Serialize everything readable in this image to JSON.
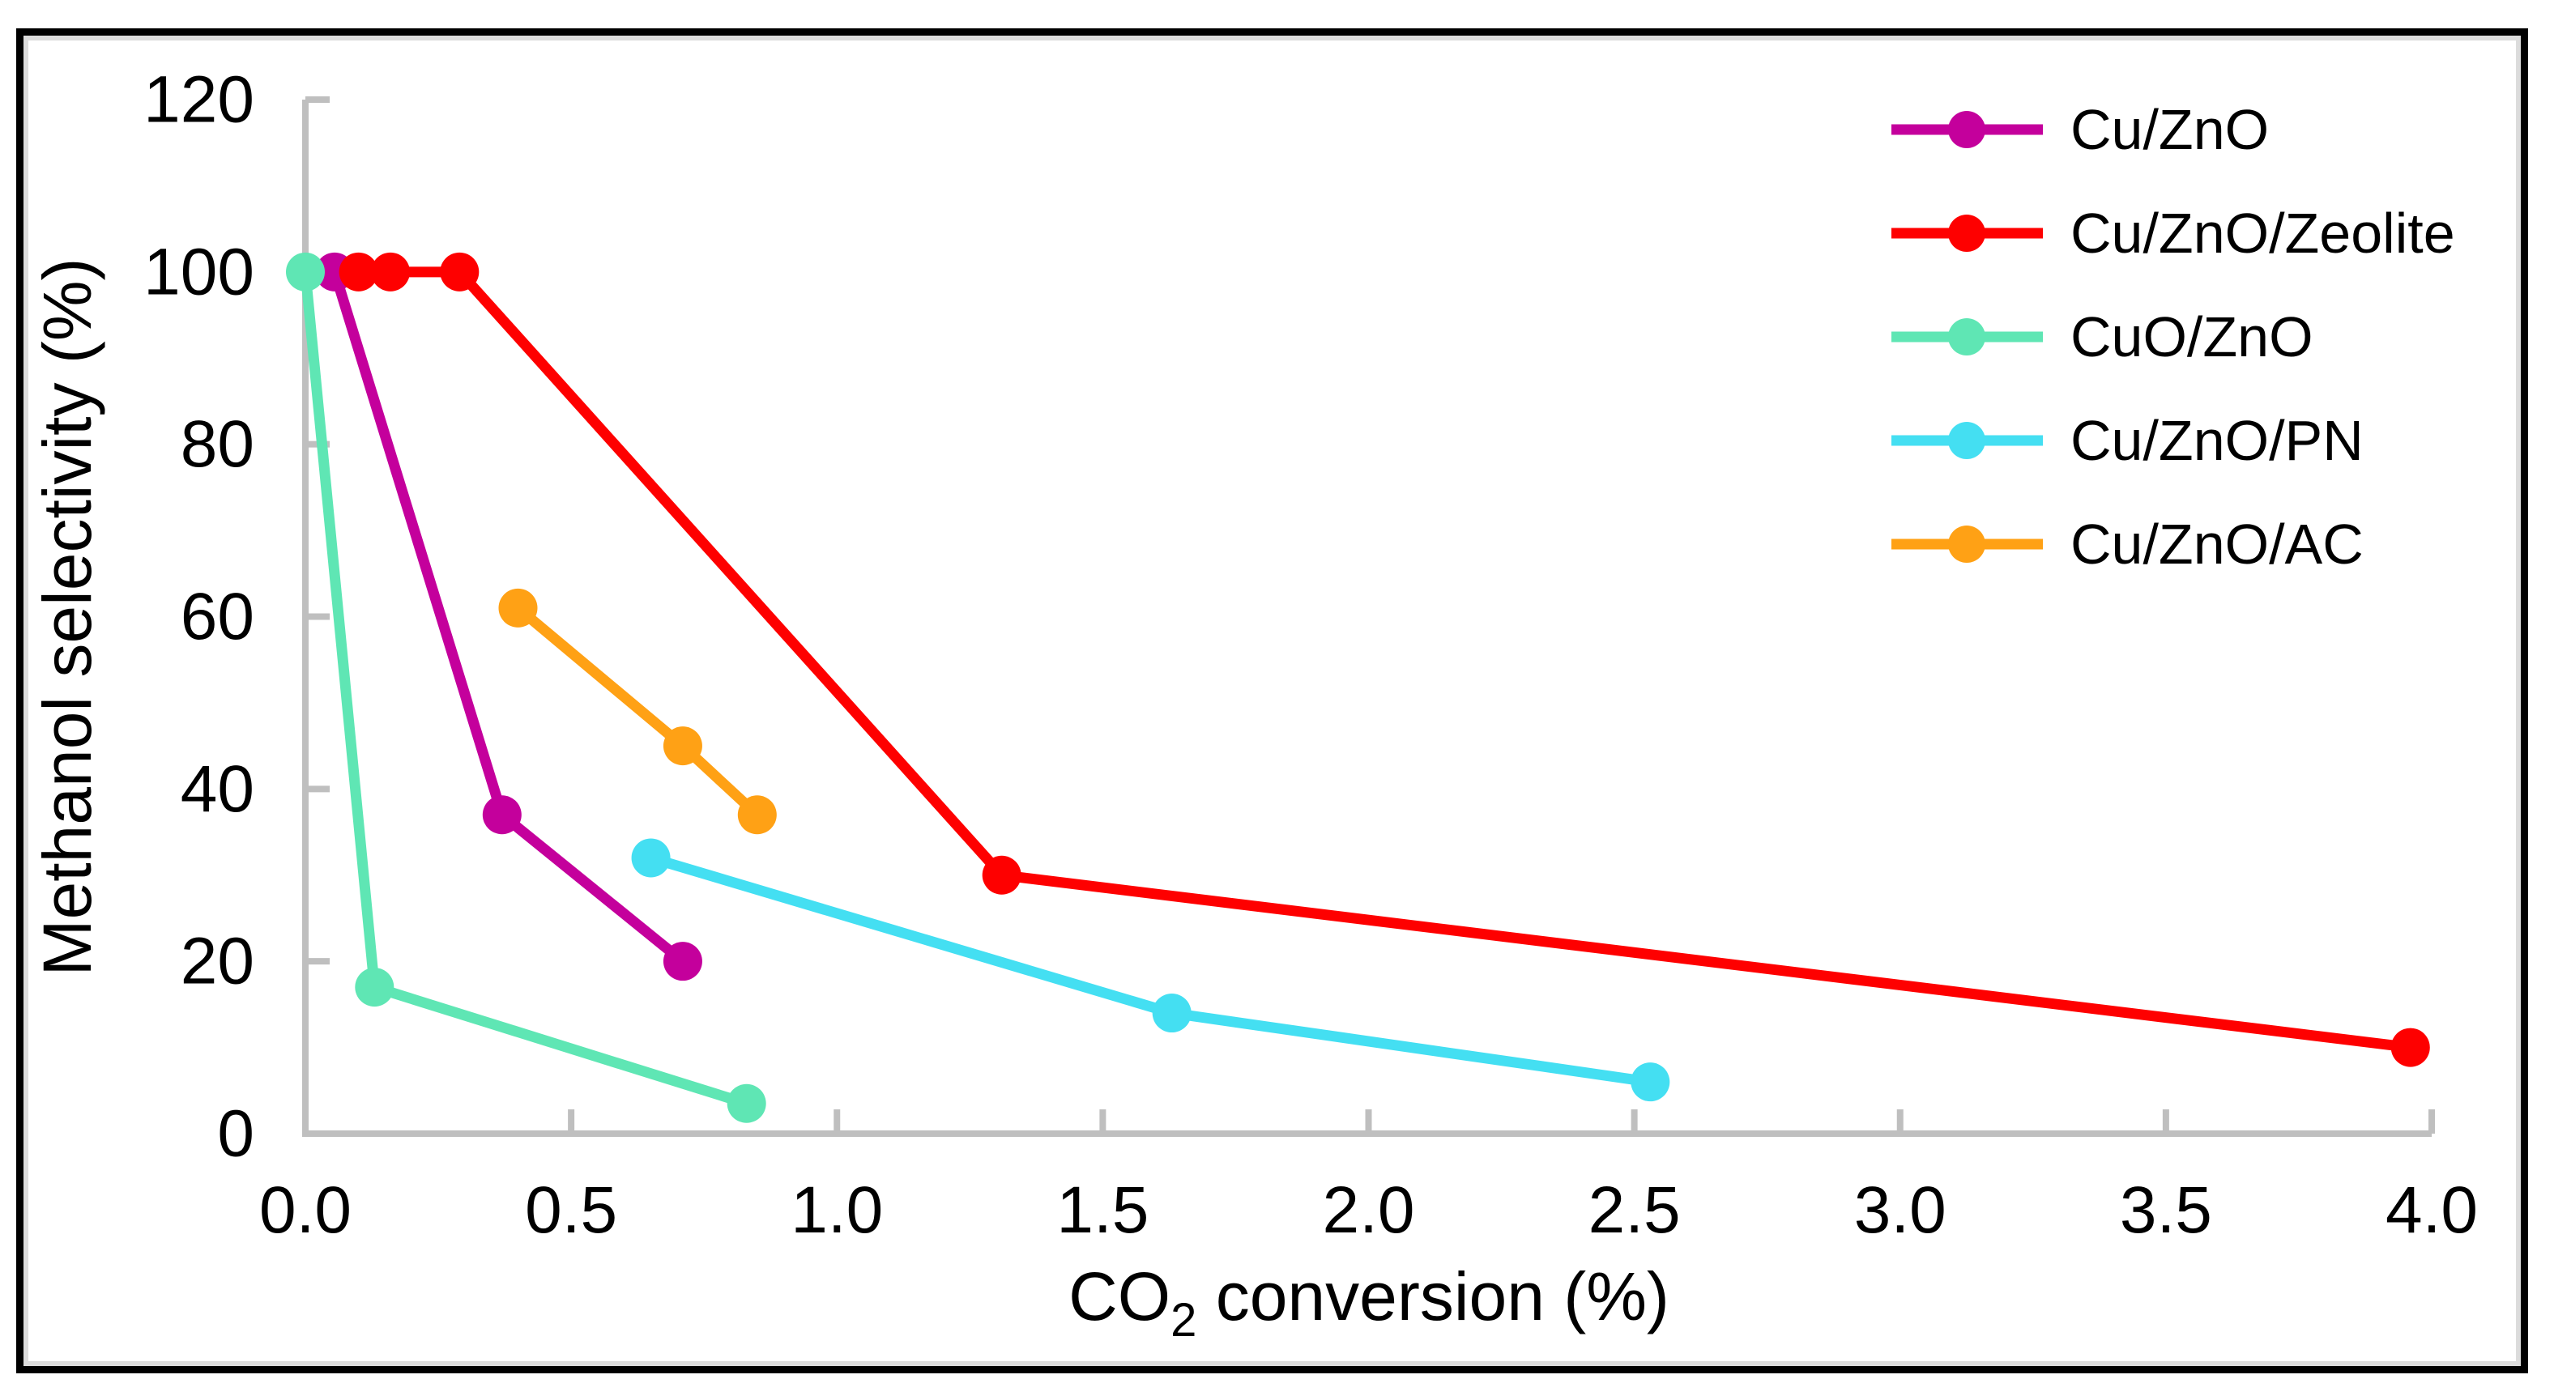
{
  "chart_data": {
    "type": "line",
    "title": "",
    "xlabel": "CO2 conversion (%)",
    "xlabel_parts": {
      "prefix": "CO",
      "sub": "2",
      "suffix": " conversion (%)"
    },
    "ylabel": "Methanol selectivity (%)",
    "xlim": [
      0,
      4
    ],
    "ylim": [
      0,
      120
    ],
    "x_tick_values": [
      0,
      0.5,
      1.0,
      1.5,
      2.0,
      2.5,
      3.0,
      3.5,
      4.0
    ],
    "x_tick_labels": [
      "0.0",
      "0.5",
      "1.0",
      "1.5",
      "2.0",
      "2.5",
      "3.0",
      "3.5",
      "4.0"
    ],
    "y_tick_values": [
      0,
      20,
      40,
      60,
      80,
      100,
      120
    ],
    "y_tick_labels": [
      "0",
      "20",
      "40",
      "60",
      "80",
      "100",
      "120"
    ],
    "grid": false,
    "legend_position": "top-right",
    "axis_color": "#BFBFBF",
    "text_color": "#000000",
    "series": [
      {
        "name": "Cu/ZnO",
        "color": "#C4009C",
        "points": [
          [
            0.055,
            100
          ],
          [
            0.37,
            37
          ],
          [
            0.71,
            20
          ]
        ]
      },
      {
        "name": "Cu/ZnO/Zeolite",
        "color": "#FE0000",
        "points": [
          [
            0.1,
            100
          ],
          [
            0.16,
            100
          ],
          [
            0.29,
            100
          ],
          [
            1.31,
            30
          ],
          [
            3.96,
            10
          ]
        ]
      },
      {
        "name": "CuO/ZnO",
        "color": "#5FE6B4",
        "points": [
          [
            0.0,
            100
          ],
          [
            0.13,
            17
          ],
          [
            0.83,
            3.5
          ]
        ]
      },
      {
        "name": "Cu/ZnO/PN",
        "color": "#44DFF2",
        "points": [
          [
            0.65,
            32
          ],
          [
            1.63,
            14
          ],
          [
            2.53,
            6
          ]
        ]
      },
      {
        "name": "Cu/ZnO/AC",
        "color": "#FFA115",
        "points": [
          [
            0.4,
            61
          ],
          [
            0.71,
            45
          ],
          [
            0.85,
            37
          ]
        ]
      }
    ]
  }
}
